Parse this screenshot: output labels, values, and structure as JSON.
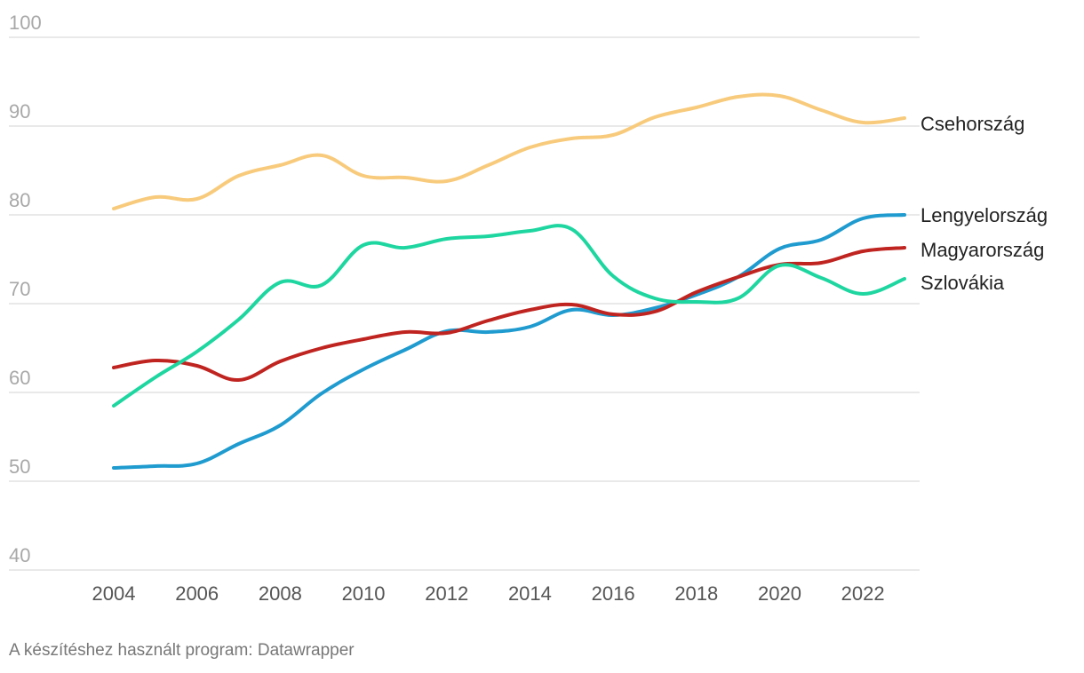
{
  "chart_data": {
    "type": "line",
    "title": "",
    "xlabel": "",
    "ylabel": "",
    "ylim": [
      40,
      100
    ],
    "yticks": [
      40,
      50,
      60,
      70,
      80,
      90,
      100
    ],
    "xlim": [
      2004,
      2023
    ],
    "xticks": [
      2004,
      2006,
      2008,
      2010,
      2012,
      2014,
      2016,
      2018,
      2020,
      2022
    ],
    "x": [
      2004,
      2005,
      2006,
      2007,
      2008,
      2009,
      2010,
      2011,
      2012,
      2013,
      2014,
      2015,
      2016,
      2017,
      2018,
      2019,
      2020,
      2021,
      2022,
      2023
    ],
    "series": [
      {
        "name": "Csehország",
        "color": "#f8cb7c",
        "values": [
          80.7,
          82.0,
          81.8,
          84.4,
          85.6,
          86.7,
          84.4,
          84.2,
          83.8,
          85.6,
          87.6,
          88.6,
          89.0,
          91.0,
          92.1,
          93.3,
          93.4,
          91.8,
          90.4,
          90.9
        ]
      },
      {
        "name": "Lengyelország",
        "color": "#1f9bcf",
        "values": [
          51.5,
          51.7,
          52.0,
          54.2,
          56.3,
          59.9,
          62.6,
          64.8,
          66.9,
          66.8,
          67.4,
          69.3,
          68.7,
          69.5,
          71.0,
          73.0,
          76.2,
          77.2,
          79.6,
          80.0
        ]
      },
      {
        "name": "Magyarország",
        "color": "#c02420",
        "values": [
          62.8,
          63.6,
          63.0,
          61.4,
          63.5,
          65.0,
          66.0,
          66.8,
          66.7,
          68.1,
          69.3,
          69.9,
          68.8,
          69.1,
          71.3,
          73.0,
          74.4,
          74.6,
          75.9,
          76.3
        ]
      },
      {
        "name": "Szlovákia",
        "color": "#1ed6a0",
        "values": [
          58.5,
          61.7,
          64.6,
          68.2,
          72.4,
          72.1,
          76.6,
          76.3,
          77.3,
          77.6,
          78.2,
          78.4,
          73.1,
          70.6,
          70.2,
          70.6,
          74.3,
          72.9,
          71.1,
          72.8
        ]
      }
    ]
  },
  "footer": "A készítéshez használt program: Datawrapper"
}
